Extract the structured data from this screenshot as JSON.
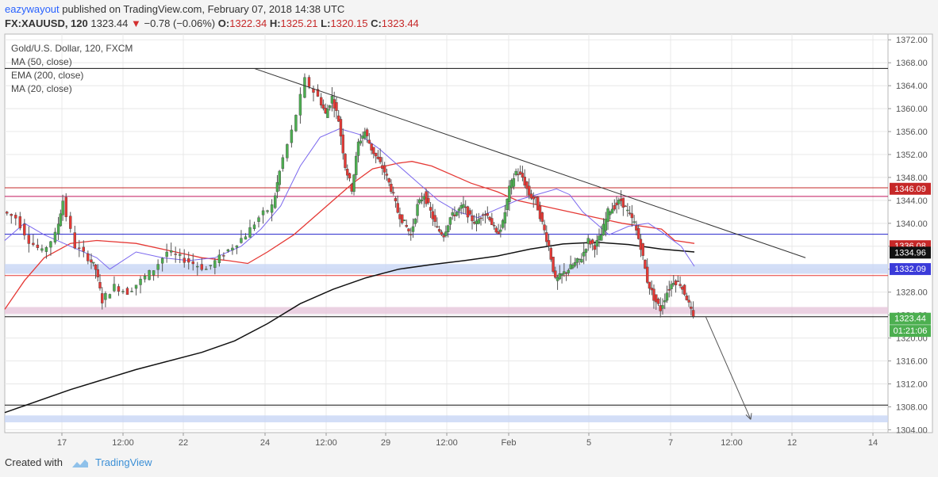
{
  "header": {
    "user": "eazywayout",
    "published_text": "published on TradingView.com, February 07, 2018 14:38 UTC",
    "symbol": "FX:XAUUSD, 120",
    "last": "1323.44",
    "change": "−0.78 (−0.06%)",
    "o_label": "O:",
    "o": "1322.34",
    "h_label": "H:",
    "h": "1325.21",
    "l_label": "L:",
    "l": "1320.15",
    "c_label": "C:",
    "c": "1323.44"
  },
  "legend": {
    "title": "Gold/U.S. Dollar, 120, FXCM",
    "ma50": "MA (50, close)",
    "ema200": "EMA (200, close)",
    "ma20": "MA (20, close)"
  },
  "footer": {
    "created_with": "Created with",
    "brand": "TradingView"
  },
  "colors": {
    "up": "#4caf50",
    "down": "#e53935",
    "ma50": "#e53935",
    "ema200": "#111111",
    "ma20": "#7b68ee",
    "resistance_red": "#e53935",
    "magenta": "#c2185b",
    "blue": "#2222cc",
    "grid": "#e8e8e8"
  },
  "chart_data": {
    "type": "candlestick",
    "title": "Gold/U.S. Dollar, 120, FXCM",
    "ylim": [
      1303.5,
      1373
    ],
    "y_ticks": [
      1304,
      1308,
      1312,
      1316,
      1320,
      1324,
      1328,
      1332,
      1336,
      1340,
      1344,
      1348,
      1352,
      1356,
      1360,
      1364,
      1368,
      1372
    ],
    "x_tick_labels": [
      "17",
      "12:00",
      "22",
      "24",
      "12:00",
      "29",
      "12:00",
      "Feb",
      "5",
      "7",
      "12:00",
      "12",
      "14"
    ],
    "price_labels": [
      {
        "value": 1346.09,
        "text": "1346.09",
        "color": "#c62828"
      },
      {
        "value": 1336.08,
        "text": "1336.08",
        "color": "#c62828"
      },
      {
        "value": 1334.96,
        "text": "1334.96",
        "color": "#111111"
      },
      {
        "value": 1332.09,
        "text": "1332.09",
        "color": "#3b3bd9"
      },
      {
        "value": 1323.44,
        "text": "1323.44",
        "color": "#4caf50"
      },
      {
        "value": 1321.3,
        "text": "01:21:06",
        "color": "#4caf50"
      }
    ],
    "horizontal_lines": [
      {
        "value": 1367.0,
        "color": "#111111"
      },
      {
        "value": 1346.2,
        "color": "#c62828"
      },
      {
        "value": 1344.7,
        "color": "#c2185b"
      },
      {
        "value": 1338.1,
        "color": "#2222cc"
      },
      {
        "value": 1330.9,
        "color": "#e53935"
      },
      {
        "value": 1323.7,
        "color": "#111111"
      },
      {
        "value": 1308.3,
        "color": "#111111"
      }
    ],
    "zones": [
      {
        "from": 1331.2,
        "to": 1332.9,
        "color": "#c8d6f5"
      },
      {
        "from": 1324.2,
        "to": 1325.4,
        "color": "#e6c6db"
      },
      {
        "from": 1305.3,
        "to": 1306.5,
        "color": "#c8d6f5"
      }
    ],
    "trendline": {
      "from": {
        "bar": 0.46,
        "price": 1367.0
      },
      "to": {
        "bar": 1.25,
        "price": 1334.0
      }
    },
    "projection": {
      "from_price": 1323.8,
      "to_price": 1305.8
    },
    "series": [
      {
        "name": "MA (50, close)",
        "points": [
          [
            0,
            1325
          ],
          [
            0.03,
            1330
          ],
          [
            0.06,
            1334
          ],
          [
            0.1,
            1336.5
          ],
          [
            0.14,
            1337
          ],
          [
            0.2,
            1336.5
          ],
          [
            0.26,
            1335
          ],
          [
            0.3,
            1334
          ],
          [
            0.34,
            1333.5
          ],
          [
            0.37,
            1333
          ],
          [
            0.4,
            1335
          ],
          [
            0.44,
            1338
          ],
          [
            0.47,
            1341
          ],
          [
            0.5,
            1344
          ],
          [
            0.53,
            1347
          ],
          [
            0.56,
            1349.5
          ],
          [
            0.6,
            1350.5
          ],
          [
            0.62,
            1350.8
          ],
          [
            0.65,
            1350
          ],
          [
            0.68,
            1348.5
          ],
          [
            0.71,
            1347
          ],
          [
            0.75,
            1345.5
          ],
          [
            0.78,
            1344
          ],
          [
            0.82,
            1343
          ],
          [
            0.86,
            1342
          ],
          [
            0.9,
            1341
          ],
          [
            0.94,
            1340
          ],
          [
            0.97,
            1339.5
          ],
          [
            1.0,
            1339
          ],
          [
            1.02,
            1337
          ],
          [
            1.05,
            1336.5
          ]
        ]
      },
      {
        "name": "EMA (200, close)",
        "points": [
          [
            0,
            1307
          ],
          [
            0.1,
            1311
          ],
          [
            0.2,
            1314.5
          ],
          [
            0.3,
            1317.5
          ],
          [
            0.35,
            1319.5
          ],
          [
            0.4,
            1322.5
          ],
          [
            0.45,
            1326
          ],
          [
            0.5,
            1328.5
          ],
          [
            0.55,
            1330.5
          ],
          [
            0.6,
            1332
          ],
          [
            0.65,
            1332.8
          ],
          [
            0.7,
            1333.5
          ],
          [
            0.75,
            1334.3
          ],
          [
            0.8,
            1335.5
          ],
          [
            0.85,
            1336.4
          ],
          [
            0.9,
            1336.7
          ],
          [
            0.95,
            1336.3
          ],
          [
            1.0,
            1335.5
          ],
          [
            1.05,
            1335
          ]
        ]
      },
      {
        "name": "MA (20, close)",
        "points": [
          [
            0,
            1337
          ],
          [
            0.03,
            1340
          ],
          [
            0.06,
            1338
          ],
          [
            0.1,
            1336
          ],
          [
            0.14,
            1334
          ],
          [
            0.16,
            1332
          ],
          [
            0.2,
            1335
          ],
          [
            0.24,
            1334
          ],
          [
            0.28,
            1333.5
          ],
          [
            0.32,
            1334
          ],
          [
            0.36,
            1336
          ],
          [
            0.39,
            1339
          ],
          [
            0.42,
            1343
          ],
          [
            0.45,
            1350
          ],
          [
            0.48,
            1355
          ],
          [
            0.51,
            1356.5
          ],
          [
            0.54,
            1355.5
          ],
          [
            0.57,
            1353
          ],
          [
            0.6,
            1350
          ],
          [
            0.63,
            1347
          ],
          [
            0.66,
            1344
          ],
          [
            0.69,
            1342
          ],
          [
            0.72,
            1341
          ],
          [
            0.75,
            1342.5
          ],
          [
            0.78,
            1344
          ],
          [
            0.81,
            1345
          ],
          [
            0.84,
            1346
          ],
          [
            0.86,
            1345
          ],
          [
            0.88,
            1342
          ],
          [
            0.9,
            1340
          ],
          [
            0.92,
            1338
          ],
          [
            0.95,
            1339.5
          ],
          [
            0.98,
            1340
          ],
          [
            1.0,
            1338.5
          ],
          [
            1.03,
            1336
          ],
          [
            1.05,
            1332.5
          ]
        ]
      },
      {
        "name": "price",
        "points": [
          [
            0,
            1342
          ],
          [
            0.02,
            1341
          ],
          [
            0.04,
            1337
          ],
          [
            0.06,
            1335
          ],
          [
            0.08,
            1338
          ],
          [
            0.09,
            1344
          ],
          [
            0.11,
            1336
          ],
          [
            0.13,
            1334
          ],
          [
            0.14,
            1332
          ],
          [
            0.15,
            1326.5
          ],
          [
            0.17,
            1329
          ],
          [
            0.19,
            1328
          ],
          [
            0.21,
            1330
          ],
          [
            0.23,
            1332
          ],
          [
            0.25,
            1335
          ],
          [
            0.27,
            1334
          ],
          [
            0.29,
            1333
          ],
          [
            0.31,
            1332
          ],
          [
            0.33,
            1334
          ],
          [
            0.35,
            1336
          ],
          [
            0.37,
            1338
          ],
          [
            0.39,
            1341
          ],
          [
            0.41,
            1343
          ],
          [
            0.42,
            1349
          ],
          [
            0.44,
            1356
          ],
          [
            0.46,
            1365
          ],
          [
            0.48,
            1362
          ],
          [
            0.49,
            1359
          ],
          [
            0.5,
            1362
          ],
          [
            0.51,
            1358
          ],
          [
            0.52,
            1350
          ],
          [
            0.53,
            1346
          ],
          [
            0.54,
            1354
          ],
          [
            0.55,
            1356
          ],
          [
            0.56,
            1353
          ],
          [
            0.57,
            1351
          ],
          [
            0.58,
            1349
          ],
          [
            0.59,
            1346
          ],
          [
            0.6,
            1342
          ],
          [
            0.61,
            1340
          ],
          [
            0.62,
            1338
          ],
          [
            0.63,
            1343
          ],
          [
            0.64,
            1345
          ],
          [
            0.65,
            1342
          ],
          [
            0.66,
            1339
          ],
          [
            0.67,
            1338
          ],
          [
            0.68,
            1341
          ],
          [
            0.69,
            1342
          ],
          [
            0.7,
            1343
          ],
          [
            0.71,
            1341
          ],
          [
            0.72,
            1340
          ],
          [
            0.73,
            1342
          ],
          [
            0.74,
            1341
          ],
          [
            0.75,
            1338
          ],
          [
            0.76,
            1340
          ],
          [
            0.77,
            1346
          ],
          [
            0.78,
            1349
          ],
          [
            0.79,
            1348
          ],
          [
            0.8,
            1345
          ],
          [
            0.81,
            1344
          ],
          [
            0.82,
            1340
          ],
          [
            0.83,
            1336
          ],
          [
            0.84,
            1330
          ],
          [
            0.85,
            1331
          ],
          [
            0.86,
            1332
          ],
          [
            0.87,
            1333
          ],
          [
            0.88,
            1334
          ],
          [
            0.89,
            1337
          ],
          [
            0.9,
            1336
          ],
          [
            0.91,
            1338
          ],
          [
            0.92,
            1342
          ],
          [
            0.93,
            1343
          ],
          [
            0.94,
            1344
          ],
          [
            0.95,
            1342
          ],
          [
            0.96,
            1340
          ],
          [
            0.97,
            1336
          ],
          [
            0.98,
            1330
          ],
          [
            0.99,
            1327
          ],
          [
            1.0,
            1325
          ],
          [
            1.01,
            1328
          ],
          [
            1.02,
            1330
          ],
          [
            1.03,
            1329.5
          ],
          [
            1.04,
            1327
          ],
          [
            1.05,
            1323.4
          ]
        ]
      }
    ]
  }
}
